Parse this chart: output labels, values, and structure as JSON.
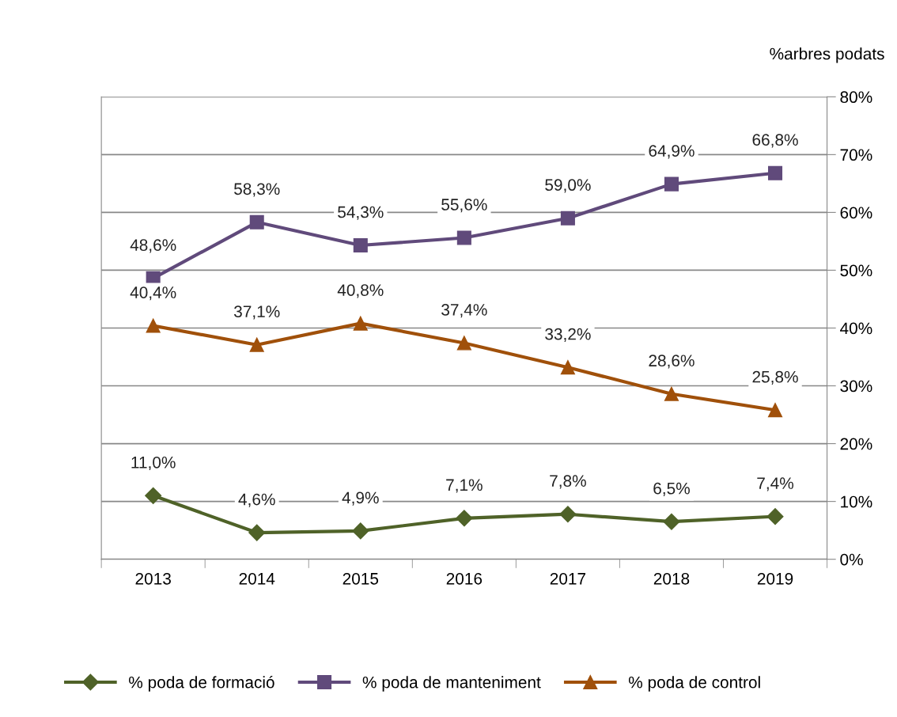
{
  "chart_data": {
    "type": "line",
    "ylabel": "%arbres podats",
    "categories": [
      "2013",
      "2014",
      "2015",
      "2016",
      "2017",
      "2018",
      "2019"
    ],
    "series": [
      {
        "name": "% poda de formació",
        "color": "#4f6228",
        "marker": "diamond",
        "values": [
          11.0,
          4.6,
          4.9,
          7.1,
          7.8,
          6.5,
          7.4
        ],
        "value_labels": [
          "11,0%",
          "4,6%",
          "4,9%",
          "7,1%",
          "7,8%",
          "6,5%",
          "7,4%"
        ]
      },
      {
        "name": "% poda de manteniment",
        "color": "#604a7b",
        "marker": "square",
        "values": [
          48.6,
          58.3,
          54.3,
          55.6,
          59.0,
          64.9,
          66.8
        ],
        "value_labels": [
          "48,6%",
          "58,3%",
          "54,3%",
          "55,6%",
          "59,0%",
          "64,9%",
          "66,8%"
        ]
      },
      {
        "name": "% poda de control",
        "color": "#a0500a",
        "marker": "triangle",
        "values": [
          40.4,
          37.1,
          40.8,
          37.4,
          33.2,
          28.6,
          25.8
        ],
        "value_labels": [
          "40,4%",
          "37,1%",
          "40,8%",
          "37,4%",
          "33,2%",
          "28,6%",
          "25,8%"
        ]
      }
    ],
    "ylim": [
      0,
      80
    ],
    "yticks": [
      {
        "value": 0,
        "label": "0%"
      },
      {
        "value": 10,
        "label": "10%"
      },
      {
        "value": 20,
        "label": "20%"
      },
      {
        "value": 30,
        "label": "30%"
      },
      {
        "value": 40,
        "label": "40%"
      },
      {
        "value": 50,
        "label": "50%"
      },
      {
        "value": 60,
        "label": "60%"
      },
      {
        "value": 70,
        "label": "70%"
      },
      {
        "value": 80,
        "label": "80%"
      }
    ],
    "grid": "y",
    "legend": "bottom",
    "line_style": "solid"
  }
}
